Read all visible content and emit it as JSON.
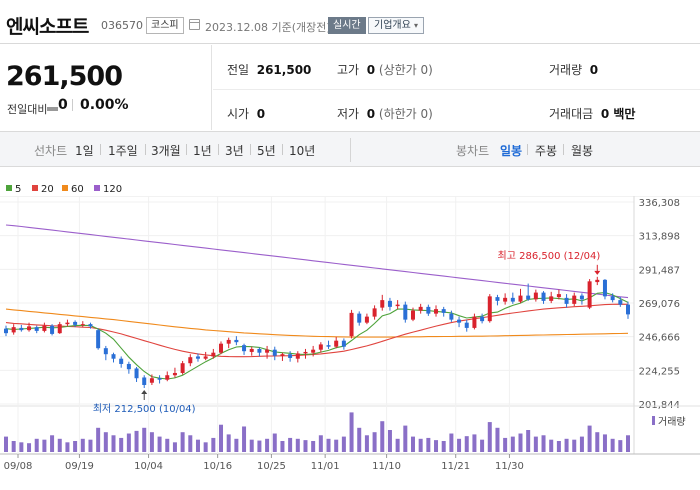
{
  "header": {
    "name": "엔씨소프트",
    "code": "036570",
    "market": "코스피",
    "date": "2023.12.08 기준(개장전)",
    "realtime_label": "실시간",
    "company_label": "기업개요",
    "company_caret": "▾"
  },
  "price": {
    "current": "261,500",
    "change_label": "전일대비",
    "change_value": "0",
    "change_pct": "0.00%"
  },
  "stats": {
    "prev": {
      "label": "전일",
      "value": "261,500"
    },
    "high": {
      "label": "고가",
      "value": "0",
      "note": "(상한가 0)"
    },
    "volume": {
      "label": "거래량",
      "value": "0"
    },
    "open": {
      "label": "시가",
      "value": "0"
    },
    "low": {
      "label": "저가",
      "value": "0",
      "note": "(하한가 0)"
    },
    "amount": {
      "label": "거래대금",
      "value": "0 백만"
    }
  },
  "tabs": {
    "line_title": "선차트",
    "line": [
      "1일",
      "1주일",
      "3개월",
      "1년",
      "3년",
      "5년",
      "10년"
    ],
    "candle_title": "봉차트",
    "candle": [
      "일봉",
      "주봉",
      "월봉"
    ],
    "candle_selected": "일봉"
  },
  "colors": {
    "up": "#d9232d",
    "down": "#2a6fd6",
    "ma5": "#4ea33b",
    "ma20": "#e0443e",
    "ma60": "#f08a1c",
    "ma120": "#9b5fcb",
    "volume": "#8a6fc7"
  },
  "legend": [
    {
      "label": "5",
      "color": "#4ea33b"
    },
    {
      "label": "20",
      "color": "#e0443e"
    },
    {
      "label": "60",
      "color": "#f08a1c"
    },
    {
      "label": "120",
      "color": "#9b5fcb"
    }
  ],
  "chart_data": {
    "type": "candlestick",
    "y_ticks": [
      "336,308",
      "313,898",
      "291,487",
      "269,076",
      "246,666",
      "224,255",
      "201,844"
    ],
    "ylim": [
      201844,
      336308
    ],
    "x_labels": [
      "09/08",
      "09/19",
      "10/04",
      "10/16",
      "10/25",
      "11/01",
      "11/10",
      "11/21",
      "11/30"
    ],
    "high_annotation": "최고 286,500 (12/04)",
    "low_annotation": "최저 212,500 (10/04)",
    "volume_label": "거래량",
    "candles": [
      {
        "o": 252000,
        "c": 249000,
        "h": 254000,
        "l": 247000,
        "v": 0.35
      },
      {
        "o": 249500,
        "c": 253000,
        "h": 255000,
        "l": 248000,
        "v": 0.25
      },
      {
        "o": 252500,
        "c": 251000,
        "h": 254500,
        "l": 250000,
        "v": 0.22
      },
      {
        "o": 251000,
        "c": 253500,
        "h": 256000,
        "l": 250000,
        "v": 0.2
      },
      {
        "o": 253000,
        "c": 250500,
        "h": 254000,
        "l": 249000,
        "v": 0.3
      },
      {
        "o": 250500,
        "c": 254000,
        "h": 256000,
        "l": 249500,
        "v": 0.28
      },
      {
        "o": 254000,
        "c": 248500,
        "h": 255000,
        "l": 247500,
        "v": 0.38
      },
      {
        "o": 249000,
        "c": 255000,
        "h": 256500,
        "l": 248500,
        "v": 0.3
      },
      {
        "o": 255000,
        "c": 256000,
        "h": 258000,
        "l": 253500,
        "v": 0.22
      },
      {
        "o": 256500,
        "c": 254500,
        "h": 257500,
        "l": 253000,
        "v": 0.25
      },
      {
        "o": 254500,
        "c": 255000,
        "h": 257000,
        "l": 253000,
        "v": 0.3
      },
      {
        "o": 255000,
        "c": 253500,
        "h": 256000,
        "l": 252000,
        "v": 0.28
      },
      {
        "o": 251000,
        "c": 239000,
        "h": 252000,
        "l": 238000,
        "v": 0.55
      },
      {
        "o": 239000,
        "c": 235000,
        "h": 240500,
        "l": 231000,
        "v": 0.45
      },
      {
        "o": 235000,
        "c": 232000,
        "h": 236000,
        "l": 229500,
        "v": 0.38
      },
      {
        "o": 232000,
        "c": 228500,
        "h": 233500,
        "l": 226000,
        "v": 0.32
      },
      {
        "o": 228500,
        "c": 225000,
        "h": 230000,
        "l": 222000,
        "v": 0.42
      },
      {
        "o": 225500,
        "c": 219000,
        "h": 226500,
        "l": 216500,
        "v": 0.48
      },
      {
        "o": 219500,
        "c": 214500,
        "h": 221000,
        "l": 212500,
        "v": 0.55
      },
      {
        "o": 216000,
        "c": 219000,
        "h": 221500,
        "l": 214500,
        "v": 0.45
      },
      {
        "o": 219000,
        "c": 218000,
        "h": 221000,
        "l": 215500,
        "v": 0.35
      },
      {
        "o": 218000,
        "c": 221000,
        "h": 223500,
        "l": 217000,
        "v": 0.3
      },
      {
        "o": 221000,
        "c": 222500,
        "h": 226000,
        "l": 219500,
        "v": 0.22
      },
      {
        "o": 222500,
        "c": 229000,
        "h": 230500,
        "l": 221500,
        "v": 0.45
      },
      {
        "o": 229000,
        "c": 233000,
        "h": 235000,
        "l": 227000,
        "v": 0.38
      },
      {
        "o": 233500,
        "c": 232000,
        "h": 235500,
        "l": 230000,
        "v": 0.28
      },
      {
        "o": 232000,
        "c": 233500,
        "h": 236500,
        "l": 231000,
        "v": 0.22
      },
      {
        "o": 233500,
        "c": 236000,
        "h": 238500,
        "l": 232000,
        "v": 0.32
      },
      {
        "o": 236000,
        "c": 242000,
        "h": 243500,
        "l": 235000,
        "v": 0.62
      },
      {
        "o": 242000,
        "c": 244500,
        "h": 246000,
        "l": 239000,
        "v": 0.4
      },
      {
        "o": 244500,
        "c": 243000,
        "h": 247000,
        "l": 241000,
        "v": 0.3
      },
      {
        "o": 241000,
        "c": 237000,
        "h": 242000,
        "l": 234500,
        "v": 0.58
      },
      {
        "o": 236500,
        "c": 238500,
        "h": 240000,
        "l": 234000,
        "v": 0.28
      },
      {
        "o": 238500,
        "c": 236000,
        "h": 239500,
        "l": 233500,
        "v": 0.26
      },
      {
        "o": 236000,
        "c": 238000,
        "h": 240500,
        "l": 232000,
        "v": 0.3
      },
      {
        "o": 238000,
        "c": 234000,
        "h": 240000,
        "l": 231000,
        "v": 0.42
      },
      {
        "o": 234000,
        "c": 235000,
        "h": 236000,
        "l": 230500,
        "v": 0.25
      },
      {
        "o": 235000,
        "c": 232500,
        "h": 237000,
        "l": 230000,
        "v": 0.32
      },
      {
        "o": 232000,
        "c": 235500,
        "h": 237000,
        "l": 229500,
        "v": 0.3
      },
      {
        "o": 235500,
        "c": 236500,
        "h": 238500,
        "l": 232000,
        "v": 0.27
      },
      {
        "o": 236000,
        "c": 238000,
        "h": 240500,
        "l": 233500,
        "v": 0.25
      },
      {
        "o": 238000,
        "c": 241500,
        "h": 243000,
        "l": 236000,
        "v": 0.38
      },
      {
        "o": 241000,
        "c": 240000,
        "h": 244000,
        "l": 238500,
        "v": 0.3
      },
      {
        "o": 240000,
        "c": 244000,
        "h": 246500,
        "l": 239000,
        "v": 0.28
      },
      {
        "o": 244000,
        "c": 240000,
        "h": 245500,
        "l": 238000,
        "v": 0.35
      },
      {
        "o": 247000,
        "c": 262500,
        "h": 264500,
        "l": 245500,
        "v": 0.9
      },
      {
        "o": 262000,
        "c": 256000,
        "h": 263500,
        "l": 254000,
        "v": 0.55
      },
      {
        "o": 256000,
        "c": 260000,
        "h": 262000,
        "l": 255000,
        "v": 0.38
      },
      {
        "o": 260000,
        "c": 265500,
        "h": 267500,
        "l": 258000,
        "v": 0.45
      },
      {
        "o": 266000,
        "c": 271000,
        "h": 274500,
        "l": 264000,
        "v": 0.7
      },
      {
        "o": 270500,
        "c": 266500,
        "h": 272500,
        "l": 264000,
        "v": 0.5
      },
      {
        "o": 267000,
        "c": 268000,
        "h": 271000,
        "l": 265000,
        "v": 0.3
      },
      {
        "o": 268000,
        "c": 258000,
        "h": 270000,
        "l": 256000,
        "v": 0.6
      },
      {
        "o": 258000,
        "c": 264000,
        "h": 266000,
        "l": 257000,
        "v": 0.35
      },
      {
        "o": 264000,
        "c": 266500,
        "h": 268500,
        "l": 262000,
        "v": 0.3
      },
      {
        "o": 266500,
        "c": 262000,
        "h": 268000,
        "l": 260500,
        "v": 0.32
      },
      {
        "o": 262000,
        "c": 265000,
        "h": 267500,
        "l": 260000,
        "v": 0.27
      },
      {
        "o": 265000,
        "c": 262500,
        "h": 266500,
        "l": 260000,
        "v": 0.25
      },
      {
        "o": 262000,
        "c": 258000,
        "h": 264000,
        "l": 256500,
        "v": 0.42
      },
      {
        "o": 258000,
        "c": 256000,
        "h": 260000,
        "l": 253000,
        "v": 0.3
      },
      {
        "o": 256000,
        "c": 252500,
        "h": 258000,
        "l": 250000,
        "v": 0.36
      },
      {
        "o": 252500,
        "c": 260000,
        "h": 262000,
        "l": 251500,
        "v": 0.4
      },
      {
        "o": 260000,
        "c": 257000,
        "h": 262000,
        "l": 255500,
        "v": 0.28
      },
      {
        "o": 257000,
        "c": 273500,
        "h": 275000,
        "l": 256000,
        "v": 0.68
      },
      {
        "o": 273000,
        "c": 270500,
        "h": 274500,
        "l": 267500,
        "v": 0.55
      },
      {
        "o": 270000,
        "c": 272500,
        "h": 275500,
        "l": 268000,
        "v": 0.32
      },
      {
        "o": 272500,
        "c": 270000,
        "h": 276000,
        "l": 268500,
        "v": 0.35
      },
      {
        "o": 270000,
        "c": 274000,
        "h": 278500,
        "l": 269000,
        "v": 0.42
      },
      {
        "o": 274000,
        "c": 271500,
        "h": 282000,
        "l": 270500,
        "v": 0.5
      },
      {
        "o": 271500,
        "c": 276000,
        "h": 278000,
        "l": 270000,
        "v": 0.35
      },
      {
        "o": 276000,
        "c": 270500,
        "h": 277000,
        "l": 268500,
        "v": 0.38
      },
      {
        "o": 270500,
        "c": 273500,
        "h": 276500,
        "l": 269000,
        "v": 0.28
      },
      {
        "o": 273000,
        "c": 275000,
        "h": 278000,
        "l": 271500,
        "v": 0.25
      },
      {
        "o": 272500,
        "c": 268500,
        "h": 275000,
        "l": 266000,
        "v": 0.3
      },
      {
        "o": 268500,
        "c": 274000,
        "h": 276000,
        "l": 267000,
        "v": 0.28
      },
      {
        "o": 274000,
        "c": 271500,
        "h": 275500,
        "l": 268000,
        "v": 0.35
      },
      {
        "o": 266000,
        "c": 283500,
        "h": 285000,
        "l": 265000,
        "v": 0.6
      },
      {
        "o": 283000,
        "c": 284500,
        "h": 286500,
        "l": 281000,
        "v": 0.45
      },
      {
        "o": 284500,
        "c": 273500,
        "h": 285000,
        "l": 271500,
        "v": 0.4
      },
      {
        "o": 273500,
        "c": 271000,
        "h": 275500,
        "l": 269500,
        "v": 0.3
      },
      {
        "o": 271000,
        "c": 268000,
        "h": 273000,
        "l": 266500,
        "v": 0.27
      },
      {
        "o": 268000,
        "c": 261500,
        "h": 270000,
        "l": 258500,
        "v": 0.38
      }
    ],
    "ma5": [
      252000,
      251500,
      251800,
      252200,
      252500,
      253000,
      252600,
      252800,
      253500,
      254000,
      254200,
      254000,
      251800,
      249000,
      245000,
      239000,
      233000,
      228000,
      223500,
      220000,
      219000,
      218500,
      219200,
      221000,
      224000,
      227000,
      230000,
      232500,
      235500,
      238000,
      239800,
      240200,
      240000,
      239500,
      238000,
      236500,
      236000,
      235600,
      235000,
      234800,
      235200,
      236400,
      237500,
      239300,
      240400,
      244100,
      248000,
      251000,
      255500,
      260500,
      262000,
      265000,
      265000,
      264500,
      264200,
      264000,
      263500,
      263000,
      262500,
      260600,
      259100,
      259700,
      260300,
      262500,
      263000,
      265500,
      267500,
      269000,
      271500,
      272000,
      272200,
      272500,
      272000,
      271500,
      271800,
      270500,
      272500,
      275500,
      276000,
      274500,
      272000,
      269500
    ],
    "ma20": [
      256000,
      255500,
      255200,
      254800,
      254500,
      254200,
      253900,
      253700,
      253500,
      253300,
      253000,
      252800,
      252000,
      251000,
      249800,
      248500,
      247000,
      245500,
      244000,
      242500,
      241000,
      239500,
      238200,
      237000,
      236000,
      235200,
      234500,
      234000,
      233600,
      233400,
      233300,
      233300,
      233400,
      233600,
      233700,
      233800,
      233900,
      234000,
      234200,
      234500,
      234800,
      235200,
      235700,
      236300,
      237000,
      238100,
      239300,
      240500,
      242000,
      243600,
      245200,
      246800,
      248300,
      249700,
      251000,
      252400,
      253700,
      254900,
      256000,
      257000,
      257800,
      258600,
      259300,
      260100,
      260900,
      261700,
      262400,
      263100,
      263800,
      264400,
      265000,
      265500,
      265900,
      266200,
      266600,
      266900,
      267200,
      267600,
      268000,
      268200,
      268300,
      268200
    ],
    "ma60": [
      265000,
      264500,
      264000,
      263500,
      263000,
      262500,
      262000,
      261500,
      261000,
      260500,
      260000,
      259500,
      259000,
      258500,
      258000,
      257400,
      256800,
      256200,
      255600,
      255000,
      254400,
      253800,
      253200,
      252700,
      252200,
      251700,
      251200,
      250800,
      250400,
      250000,
      249600,
      249200,
      248900,
      248600,
      248300,
      248000,
      247700,
      247500,
      247300,
      247100,
      246900,
      246800,
      246700,
      246600,
      246500,
      246400,
      246400,
      246400,
      246400,
      246400,
      246400,
      246500,
      246500,
      246600,
      246600,
      246700,
      246700,
      246800,
      246800,
      246900,
      246900,
      247000,
      247000,
      247100,
      247200,
      247300,
      247400,
      247500,
      247600,
      247700,
      247800,
      247900,
      248000,
      248100,
      248200,
      248300,
      248400,
      248500,
      248600,
      248700,
      248800,
      248900
    ],
    "ma120": [
      321000,
      320500,
      320000,
      319400,
      318800,
      318200,
      317600,
      317000,
      316400,
      315800,
      315200,
      314600,
      314000,
      313400,
      312800,
      312200,
      311600,
      311000,
      310400,
      309800,
      309200,
      308600,
      308000,
      307400,
      306800,
      306200,
      305600,
      305000,
      304400,
      303800,
      303200,
      302600,
      302000,
      301400,
      300800,
      300200,
      299600,
      299000,
      298400,
      297800,
      297200,
      296600,
      296000,
      295400,
      294800,
      294200,
      293600,
      293000,
      292400,
      291800,
      291200,
      290600,
      290000,
      289400,
      288800,
      288200,
      287600,
      287000,
      286400,
      285800,
      285200,
      284600,
      284000,
      283400,
      282800,
      282200,
      281600,
      281000,
      280400,
      279800,
      279200,
      278600,
      278000,
      277400,
      276800,
      276200,
      275600,
      275000,
      274400,
      273800,
      273200,
      272700
    ]
  }
}
